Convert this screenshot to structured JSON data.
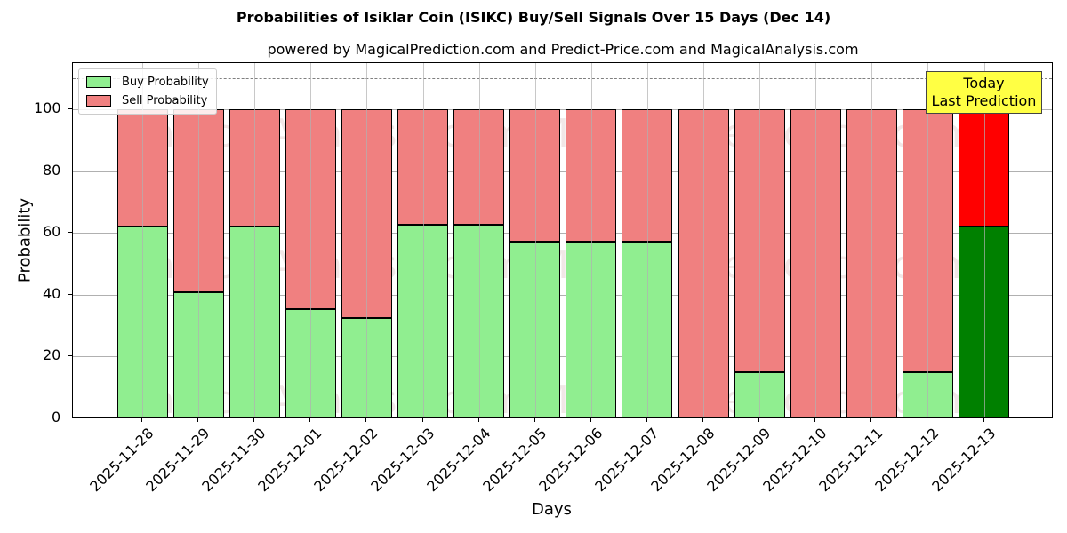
{
  "chart_data": {
    "type": "bar",
    "stacked": true,
    "title": "Probabilities of Isiklar Coin (ISIKC) Buy/Sell Signals Over 15 Days (Dec 14)",
    "subtitle": "powered by MagicalPrediction.com and Predict-Price.com and MagicalAnalysis.com",
    "xlabel": "Days",
    "ylabel": "Probability",
    "ylim": [
      0,
      115
    ],
    "yticks": [
      0,
      20,
      40,
      60,
      80,
      100
    ],
    "grid": true,
    "legend_position": "upper left",
    "reference_line": {
      "y": 110,
      "style": "dashed",
      "color": "#808080"
    },
    "categories": [
      "2025-11-28",
      "2025-11-29",
      "2025-11-30",
      "2025-12-01",
      "2025-12-02",
      "2025-12-03",
      "2025-12-04",
      "2025-12-05",
      "2025-12-06",
      "2025-12-07",
      "2025-12-08",
      "2025-12-09",
      "2025-12-10",
      "2025-12-11",
      "2025-12-12",
      "2025-12-13"
    ],
    "series": [
      {
        "name": "Buy Probability",
        "color": "#90ee90",
        "values": [
          62.1,
          40.8,
          62.1,
          35.5,
          32.4,
          62.7,
          62.7,
          57.2,
          57.2,
          57.2,
          0,
          15.0,
          0,
          0,
          15.0,
          62.1
        ]
      },
      {
        "name": "Sell Probability",
        "color": "#f08080",
        "values": [
          37.9,
          59.2,
          37.9,
          64.5,
          67.6,
          37.3,
          37.3,
          42.8,
          42.8,
          42.8,
          100,
          85.0,
          100,
          100,
          85.0,
          37.9
        ]
      }
    ],
    "highlight": {
      "index": 15,
      "buy_color": "#008000",
      "sell_color": "#ff0000"
    },
    "annotation": {
      "line1": "Today",
      "line2": "Last Prediction",
      "background": "#ffff44"
    },
    "watermarks": [
      "MagicalAnalysis.com",
      "MagicalPrediction.com"
    ]
  }
}
